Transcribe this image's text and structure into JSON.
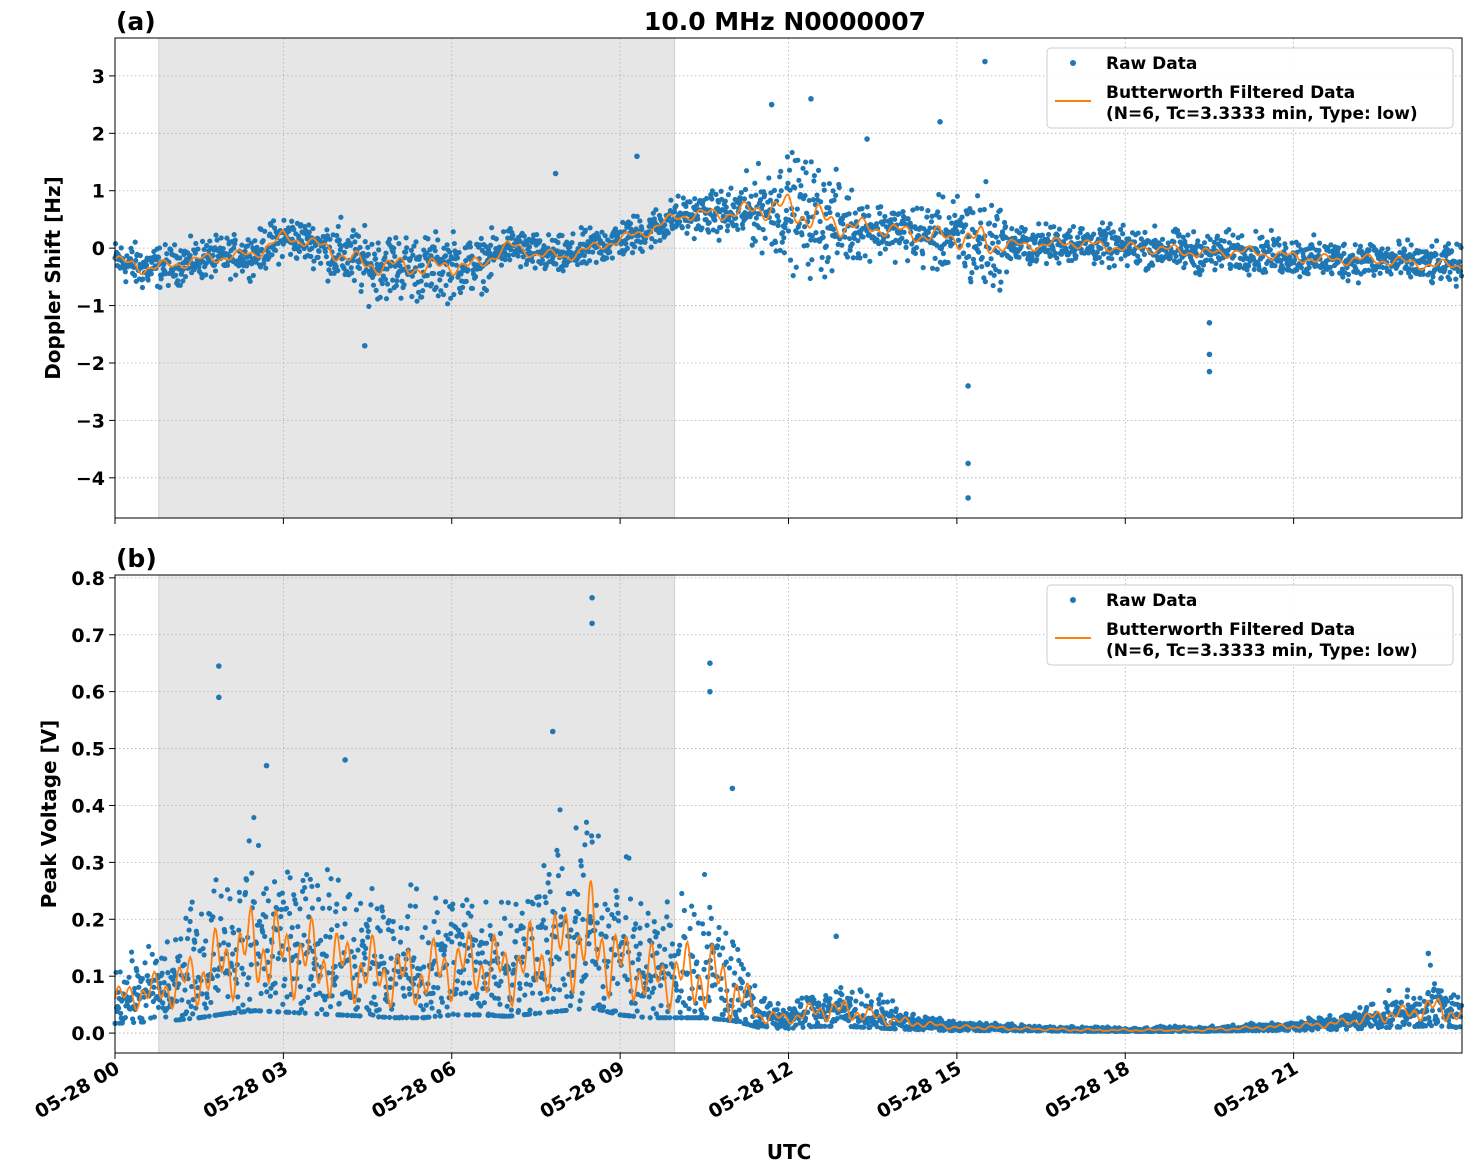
{
  "chart_data": [
    {
      "panel_label": "(a)",
      "title": "10.0 MHz N0000007",
      "type": "scatter+line",
      "ylabel": "Doppler Shift [Hz]",
      "xlabel": "",
      "xlim_hours": [
        0,
        24
      ],
      "ylim": [
        -4.7,
        3.66
      ],
      "yticks": [
        3,
        2,
        1,
        0,
        -1,
        -2,
        -3,
        -4
      ],
      "ytick_labels": [
        "3",
        "2",
        "1",
        "0",
        "−1",
        "−2",
        "−3",
        "−4"
      ],
      "grid": true,
      "legend_position": "top-right",
      "legend": [
        "Raw Data",
        "Butterworth Filtered Data",
        "(N=6, Tc=3.3333 min, Type: low)"
      ],
      "shaded_interval_hours": [
        0.78,
        9.97
      ],
      "x_hours": [
        0,
        0.5,
        1,
        1.5,
        2,
        2.5,
        3,
        3.5,
        4,
        4.5,
        5,
        5.5,
        6,
        6.5,
        7,
        7.5,
        8,
        8.5,
        9,
        9.5,
        10,
        10.5,
        11,
        11.5,
        12,
        12.5,
        13,
        13.5,
        14,
        14.5,
        15,
        15.5,
        16,
        16.5,
        17,
        17.5,
        18,
        18.5,
        19,
        19.5,
        20,
        20.5,
        21,
        21.5,
        22,
        22.5,
        23,
        23.5,
        24
      ],
      "filtered": [
        -0.2,
        -0.35,
        -0.3,
        -0.2,
        -0.15,
        -0.1,
        0.2,
        0.1,
        -0.1,
        -0.3,
        -0.3,
        -0.35,
        -0.3,
        -0.3,
        0.05,
        -0.1,
        -0.15,
        0,
        0.15,
        0.3,
        0.55,
        0.6,
        0.6,
        0.7,
        0.7,
        0.5,
        0.4,
        0.35,
        0.3,
        0.2,
        0.2,
        0.1,
        0.05,
        0.05,
        0.1,
        0.05,
        0,
        0,
        -0.05,
        -0.1,
        -0.05,
        -0.1,
        -0.15,
        -0.2,
        -0.2,
        -0.2,
        -0.25,
        -0.3,
        -0.3
      ],
      "raw_spread": [
        0.3,
        0.35,
        0.3,
        0.3,
        0.3,
        0.3,
        0.35,
        0.3,
        0.5,
        0.5,
        0.5,
        0.5,
        0.5,
        0.4,
        0.3,
        0.3,
        0.3,
        0.3,
        0.3,
        0.3,
        0.3,
        0.3,
        0.4,
        0.6,
        0.8,
        0.9,
        0.6,
        0.4,
        0.4,
        0.5,
        0.6,
        0.9,
        0.3,
        0.3,
        0.3,
        0.3,
        0.3,
        0.3,
        0.3,
        0.3,
        0.3,
        0.3,
        0.3,
        0.3,
        0.3,
        0.3,
        0.3,
        0.3,
        0.3
      ],
      "outliers": [
        [
          4.45,
          -1.7
        ],
        [
          7.85,
          1.3
        ],
        [
          9.3,
          1.6
        ],
        [
          11.7,
          2.5
        ],
        [
          12.4,
          2.6
        ],
        [
          13.4,
          1.9
        ],
        [
          14.7,
          2.2
        ],
        [
          15.2,
          -2.4
        ],
        [
          15.2,
          -3.75
        ],
        [
          15.2,
          -4.35
        ],
        [
          15.5,
          3.25
        ],
        [
          19.5,
          -1.3
        ],
        [
          19.5,
          -1.85
        ],
        [
          19.5,
          -2.15
        ]
      ],
      "series_colors": {
        "raw": "#1f77b4",
        "filtered": "#ff7f0e"
      }
    },
    {
      "panel_label": "(b)",
      "type": "scatter+line",
      "ylabel": "Peak Voltage [V]",
      "xlabel": "UTC",
      "xlim_hours": [
        0,
        24
      ],
      "ylim": [
        -0.035,
        0.805
      ],
      "yticks": [
        0,
        0.1,
        0.2,
        0.3,
        0.4,
        0.5,
        0.6,
        0.7,
        0.8
      ],
      "ytick_labels": [
        "0.0",
        "0.1",
        "0.2",
        "0.3",
        "0.4",
        "0.5",
        "0.6",
        "0.7",
        "0.8"
      ],
      "xtick_labels": [
        "05-28 00",
        "05-28 03",
        "05-28 06",
        "05-28 09",
        "05-28 12",
        "05-28 15",
        "05-28 18",
        "05-28 21"
      ],
      "grid": true,
      "legend_position": "top-right",
      "legend": [
        "Raw Data",
        "Butterworth Filtered Data",
        "(N=6, Tc=3.3333 min, Type: low)"
      ],
      "shaded_interval_hours": [
        0.78,
        9.97
      ],
      "x_hours": [
        0,
        0.5,
        1,
        1.5,
        2,
        2.5,
        3,
        3.5,
        4,
        4.5,
        5,
        5.5,
        6,
        6.5,
        7,
        7.5,
        8,
        8.5,
        9,
        9.5,
        10,
        10.5,
        11,
        11.5,
        12,
        12.5,
        13,
        13.5,
        14,
        14.5,
        15,
        15.5,
        16,
        16.5,
        17,
        17.5,
        18,
        18.5,
        19,
        19.5,
        20,
        20.5,
        21,
        21.5,
        22,
        22.5,
        23,
        23.5,
        24
      ],
      "filtered": [
        0.06,
        0.07,
        0.08,
        0.1,
        0.13,
        0.15,
        0.14,
        0.13,
        0.12,
        0.11,
        0.1,
        0.1,
        0.12,
        0.12,
        0.11,
        0.13,
        0.15,
        0.17,
        0.12,
        0.1,
        0.1,
        0.1,
        0.08,
        0.03,
        0.025,
        0.04,
        0.04,
        0.03,
        0.02,
        0.015,
        0.01,
        0.01,
        0.008,
        0.007,
        0.006,
        0.005,
        0.005,
        0.005,
        0.005,
        0.006,
        0.008,
        0.01,
        0.012,
        0.015,
        0.02,
        0.03,
        0.035,
        0.045,
        0.03
      ],
      "raw_spread": [
        0.05,
        0.06,
        0.08,
        0.12,
        0.15,
        0.17,
        0.16,
        0.15,
        0.14,
        0.13,
        0.12,
        0.12,
        0.13,
        0.13,
        0.13,
        0.15,
        0.18,
        0.2,
        0.14,
        0.12,
        0.12,
        0.15,
        0.12,
        0.03,
        0.02,
        0.04,
        0.04,
        0.03,
        0.02,
        0.012,
        0.008,
        0.008,
        0.006,
        0.005,
        0.005,
        0.005,
        0.005,
        0.005,
        0.005,
        0.005,
        0.006,
        0.008,
        0.01,
        0.012,
        0.016,
        0.025,
        0.03,
        0.05,
        0.03
      ],
      "outliers": [
        [
          1.85,
          0.645
        ],
        [
          1.85,
          0.59
        ],
        [
          2.7,
          0.47
        ],
        [
          4.1,
          0.48
        ],
        [
          7.8,
          0.53
        ],
        [
          8.5,
          0.765
        ],
        [
          8.5,
          0.72
        ],
        [
          10.6,
          0.65
        ],
        [
          10.6,
          0.6
        ],
        [
          11.0,
          0.43
        ],
        [
          12.85,
          0.17
        ],
        [
          23.4,
          0.14
        ]
      ],
      "series_colors": {
        "raw": "#1f77b4",
        "filtered": "#ff7f0e"
      }
    }
  ]
}
